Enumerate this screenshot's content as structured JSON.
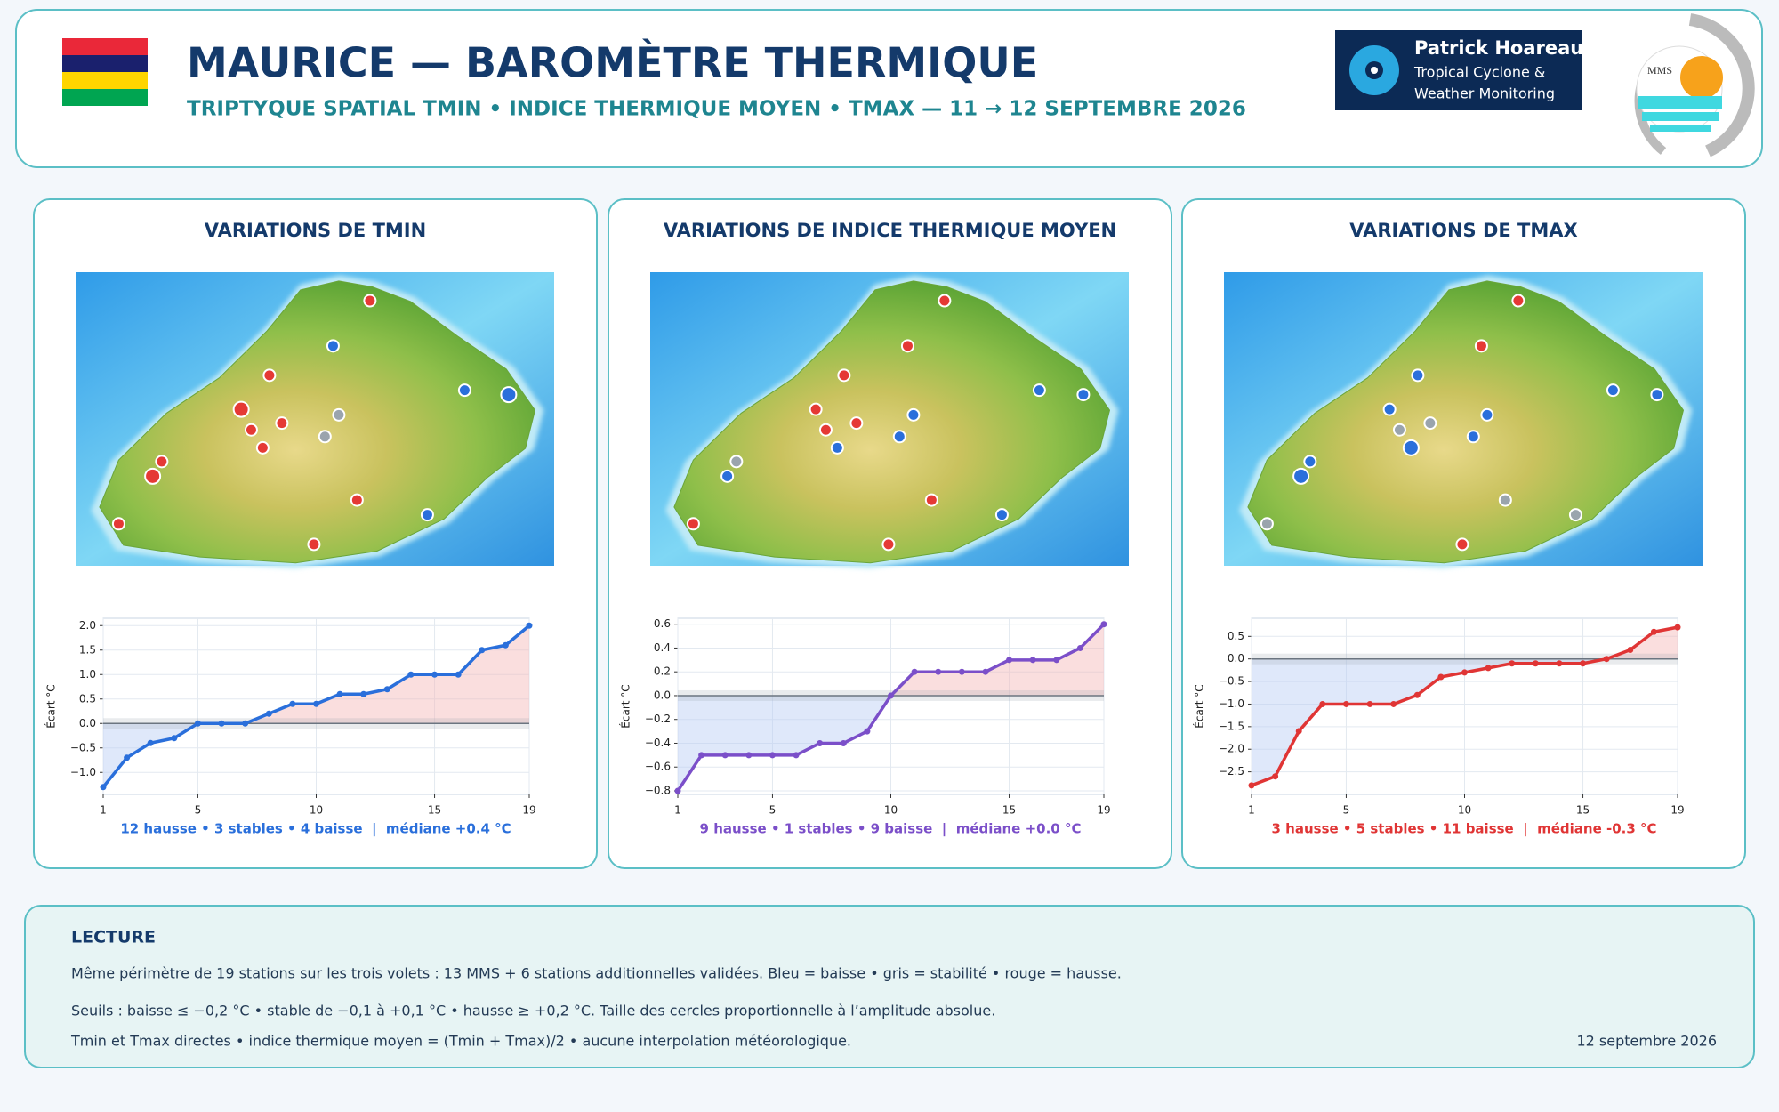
{
  "header": {
    "title": "MAURICE — BAROMÈTRE THERMIQUE",
    "subtitle": "TRIPTYQUE SPATIAL TMIN • INDICE THERMIQUE MOYEN • TMAX  —  11 → 12 SEPTEMBRE 2026",
    "brand": {
      "name": "Patrick Hoareau",
      "line1": "Tropical Cyclone &",
      "line2": "Weather Monitoring"
    },
    "logo": "MMS"
  },
  "chart_data": [
    {
      "type": "line",
      "title": "VARIATIONS DE TMIN",
      "color": "#2a6fdb",
      "ylabel": "Écart °C",
      "x": [
        1,
        2,
        3,
        4,
        5,
        6,
        7,
        8,
        9,
        10,
        11,
        12,
        13,
        14,
        15,
        16,
        17,
        18,
        19
      ],
      "values": [
        -1.3,
        -0.7,
        -0.4,
        -0.3,
        0.0,
        0.0,
        0.0,
        0.2,
        0.4,
        0.4,
        0.6,
        0.6,
        0.7,
        1.0,
        1.0,
        1.0,
        1.5,
        1.6,
        2.0
      ],
      "xlim": [
        1,
        19
      ],
      "xticks": [
        1,
        5,
        10,
        15,
        19
      ],
      "ylim": [
        -1.45,
        2.15
      ],
      "yticks": [
        {
          "value": -1.0,
          "label": "−1.0"
        },
        {
          "value": -0.5,
          "label": "−0.5"
        },
        {
          "value": 0.0,
          "label": "0.0"
        },
        0.5,
        {
          "value": 1.0,
          "label": "1.0"
        },
        1.5,
        {
          "value": 2.0,
          "label": "2.0"
        }
      ],
      "grid": true,
      "summary": "12 hausse • 3 stables • 4 baisse  |  médiane +0.4 °C"
    },
    {
      "type": "line",
      "title": "VARIATIONS DE INDICE THERMIQUE MOYEN",
      "color": "#7b4fc9",
      "ylabel": "Écart °C",
      "x": [
        1,
        2,
        3,
        4,
        5,
        6,
        7,
        8,
        9,
        10,
        11,
        12,
        13,
        14,
        15,
        16,
        17,
        18,
        19
      ],
      "values": [
        -0.8,
        -0.5,
        -0.5,
        -0.5,
        -0.5,
        -0.5,
        -0.4,
        -0.4,
        -0.3,
        0.0,
        0.2,
        0.2,
        0.2,
        0.2,
        0.3,
        0.3,
        0.3,
        0.4,
        0.6
      ],
      "xlim": [
        1,
        19
      ],
      "xticks": [
        1,
        5,
        10,
        15,
        19
      ],
      "ylim": [
        -0.83,
        0.65
      ],
      "yticks": [
        {
          "value": -0.8,
          "label": "−0.8"
        },
        {
          "value": -0.6,
          "label": "−0.6"
        },
        {
          "value": -0.4,
          "label": "−0.4"
        },
        {
          "value": -0.2,
          "label": "−0.2"
        },
        {
          "value": 0.0,
          "label": "0.0"
        },
        0.2,
        0.4,
        0.6
      ],
      "grid": true,
      "summary": "9 hausse • 1 stables • 9 baisse  |  médiane +0.0 °C"
    },
    {
      "type": "line",
      "title": "VARIATIONS DE TMAX",
      "color": "#e03535",
      "ylabel": "Écart °C",
      "x": [
        1,
        2,
        3,
        4,
        5,
        6,
        7,
        8,
        9,
        10,
        11,
        12,
        13,
        14,
        15,
        16,
        17,
        18,
        19
      ],
      "values": [
        -2.8,
        -2.6,
        -1.6,
        -1.0,
        -1.0,
        -1.0,
        -1.0,
        -0.8,
        -0.4,
        -0.3,
        -0.2,
        -0.1,
        -0.1,
        -0.1,
        -0.1,
        0.0,
        0.2,
        0.6,
        0.7
      ],
      "xlim": [
        1,
        19
      ],
      "xticks": [
        1,
        5,
        10,
        15,
        19
      ],
      "ylim": [
        -3.0,
        0.9
      ],
      "yticks": [
        {
          "value": -2.5,
          "label": "−2.5"
        },
        {
          "value": -2.0,
          "label": "−2.0"
        },
        {
          "value": -1.5,
          "label": "−1.5"
        },
        {
          "value": -1.0,
          "label": "−1.0"
        },
        {
          "value": -0.5,
          "label": "−0.5"
        },
        {
          "value": 0.0,
          "label": "0.0"
        },
        0.5
      ],
      "grid": true,
      "summary": "3 hausse • 5 stables • 11 baisse  |  médiane -0.3 °C"
    }
  ],
  "lecture": {
    "heading": "LECTURE",
    "lines": [
      "Même périmètre de 19 stations sur les trois volets : 13 MMS + 6 stations additionnelles validées. Bleu = baisse • gris = stabilité • rouge = hausse.",
      "Seuils : baisse ≤ −0,2 °C • stable de −0,1 à +0,1 °C • hausse ≥ +0,2 °C. Taille des cercles proportionnelle à l’amplitude absolue.",
      "Tmin et Tmax directes • indice thermique moyen = (Tmin + Tmax)/2 • aucune interpolation météorologique."
    ],
    "date": "12 septembre 2026"
  }
}
